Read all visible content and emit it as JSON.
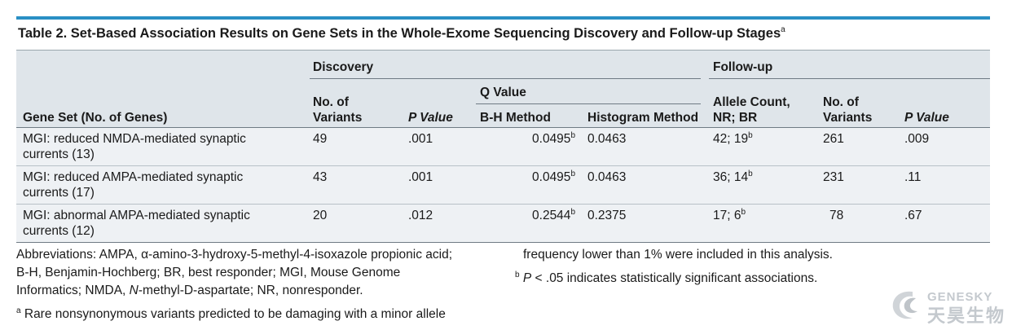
{
  "table": {
    "title": "Table 2. Set-Based Association Results on Gene Sets in the Whole-Exome Sequencing Discovery and Follow-up Stages",
    "title_sup": "a",
    "groups": {
      "discovery": "Discovery",
      "followup": "Follow-up",
      "qvalue": "Q Value"
    },
    "headers": {
      "gene_set": "Gene Set (No. of Genes)",
      "variants_l1": "No. of",
      "variants_l2": "Variants",
      "pvalue": "P Value",
      "bh": "B-H Method",
      "histogram": "Histogram Method",
      "allele_l1": "Allele Count,",
      "allele_l2": "NR; BR",
      "fu_variants_l1": "No. of",
      "fu_variants_l2": "Variants",
      "fu_pvalue": "P Value"
    },
    "rows": [
      {
        "gene_l1": "MGI: reduced NMDA-mediated synaptic",
        "gene_l2": "currents (13)",
        "variants": "49",
        "pvalue": ".001",
        "bh": "0.0495",
        "bh_sup": "b",
        "histogram": "0.0463",
        "allele": "42; 19",
        "allele_sup": "b",
        "fu_variants": "261",
        "fu_pvalue": ".009"
      },
      {
        "gene_l1": "MGI: reduced AMPA-mediated synaptic",
        "gene_l2": "currents (17)",
        "variants": "43",
        "pvalue": ".001",
        "bh": "0.0495",
        "bh_sup": "b",
        "histogram": "0.0463",
        "allele": "36; 14",
        "allele_sup": "b",
        "fu_variants": "231",
        "fu_pvalue": ".11"
      },
      {
        "gene_l1": "MGI: abnormal AMPA-mediated synaptic",
        "gene_l2": "currents (12)",
        "variants": "20",
        "pvalue": ".012",
        "bh": "0.2544",
        "bh_sup": "b",
        "histogram": "0.2375",
        "allele": "17; 6",
        "allele_sup": "b",
        "fu_variants": "78",
        "fu_pvalue": ".67"
      }
    ]
  },
  "footnotes": {
    "abbr_l1": "Abbreviations: AMPA, α-amino-3-hydroxy-5-methyl-4-isoxazole propionic acid;",
    "abbr_l2": "B-H, Benjamin-Hochberg; BR, best responder; MGI, Mouse Genome",
    "abbr_l3a": "Informatics; NMDA, ",
    "abbr_l3b": "N",
    "abbr_l3c": "-methyl-D-aspartate; NR, nonresponder.",
    "a_sup": "a",
    "a_l1": " Rare nonsynonymous variants predicted to be damaging with a minor allele",
    "a_l2": "frequency lower than 1% were included in this analysis.",
    "b_sup": "b",
    "b_p": " P",
    "b_rest": " < .05 indicates statistically significant associations."
  },
  "watermark": {
    "latin": "GENESKY",
    "cjk": "天昊生物"
  },
  "colors": {
    "accent": "#2a8fc4",
    "header_bg": "#dfe5ea",
    "row_bg": "#eef1f4",
    "watermark": "#c9cdd1"
  }
}
